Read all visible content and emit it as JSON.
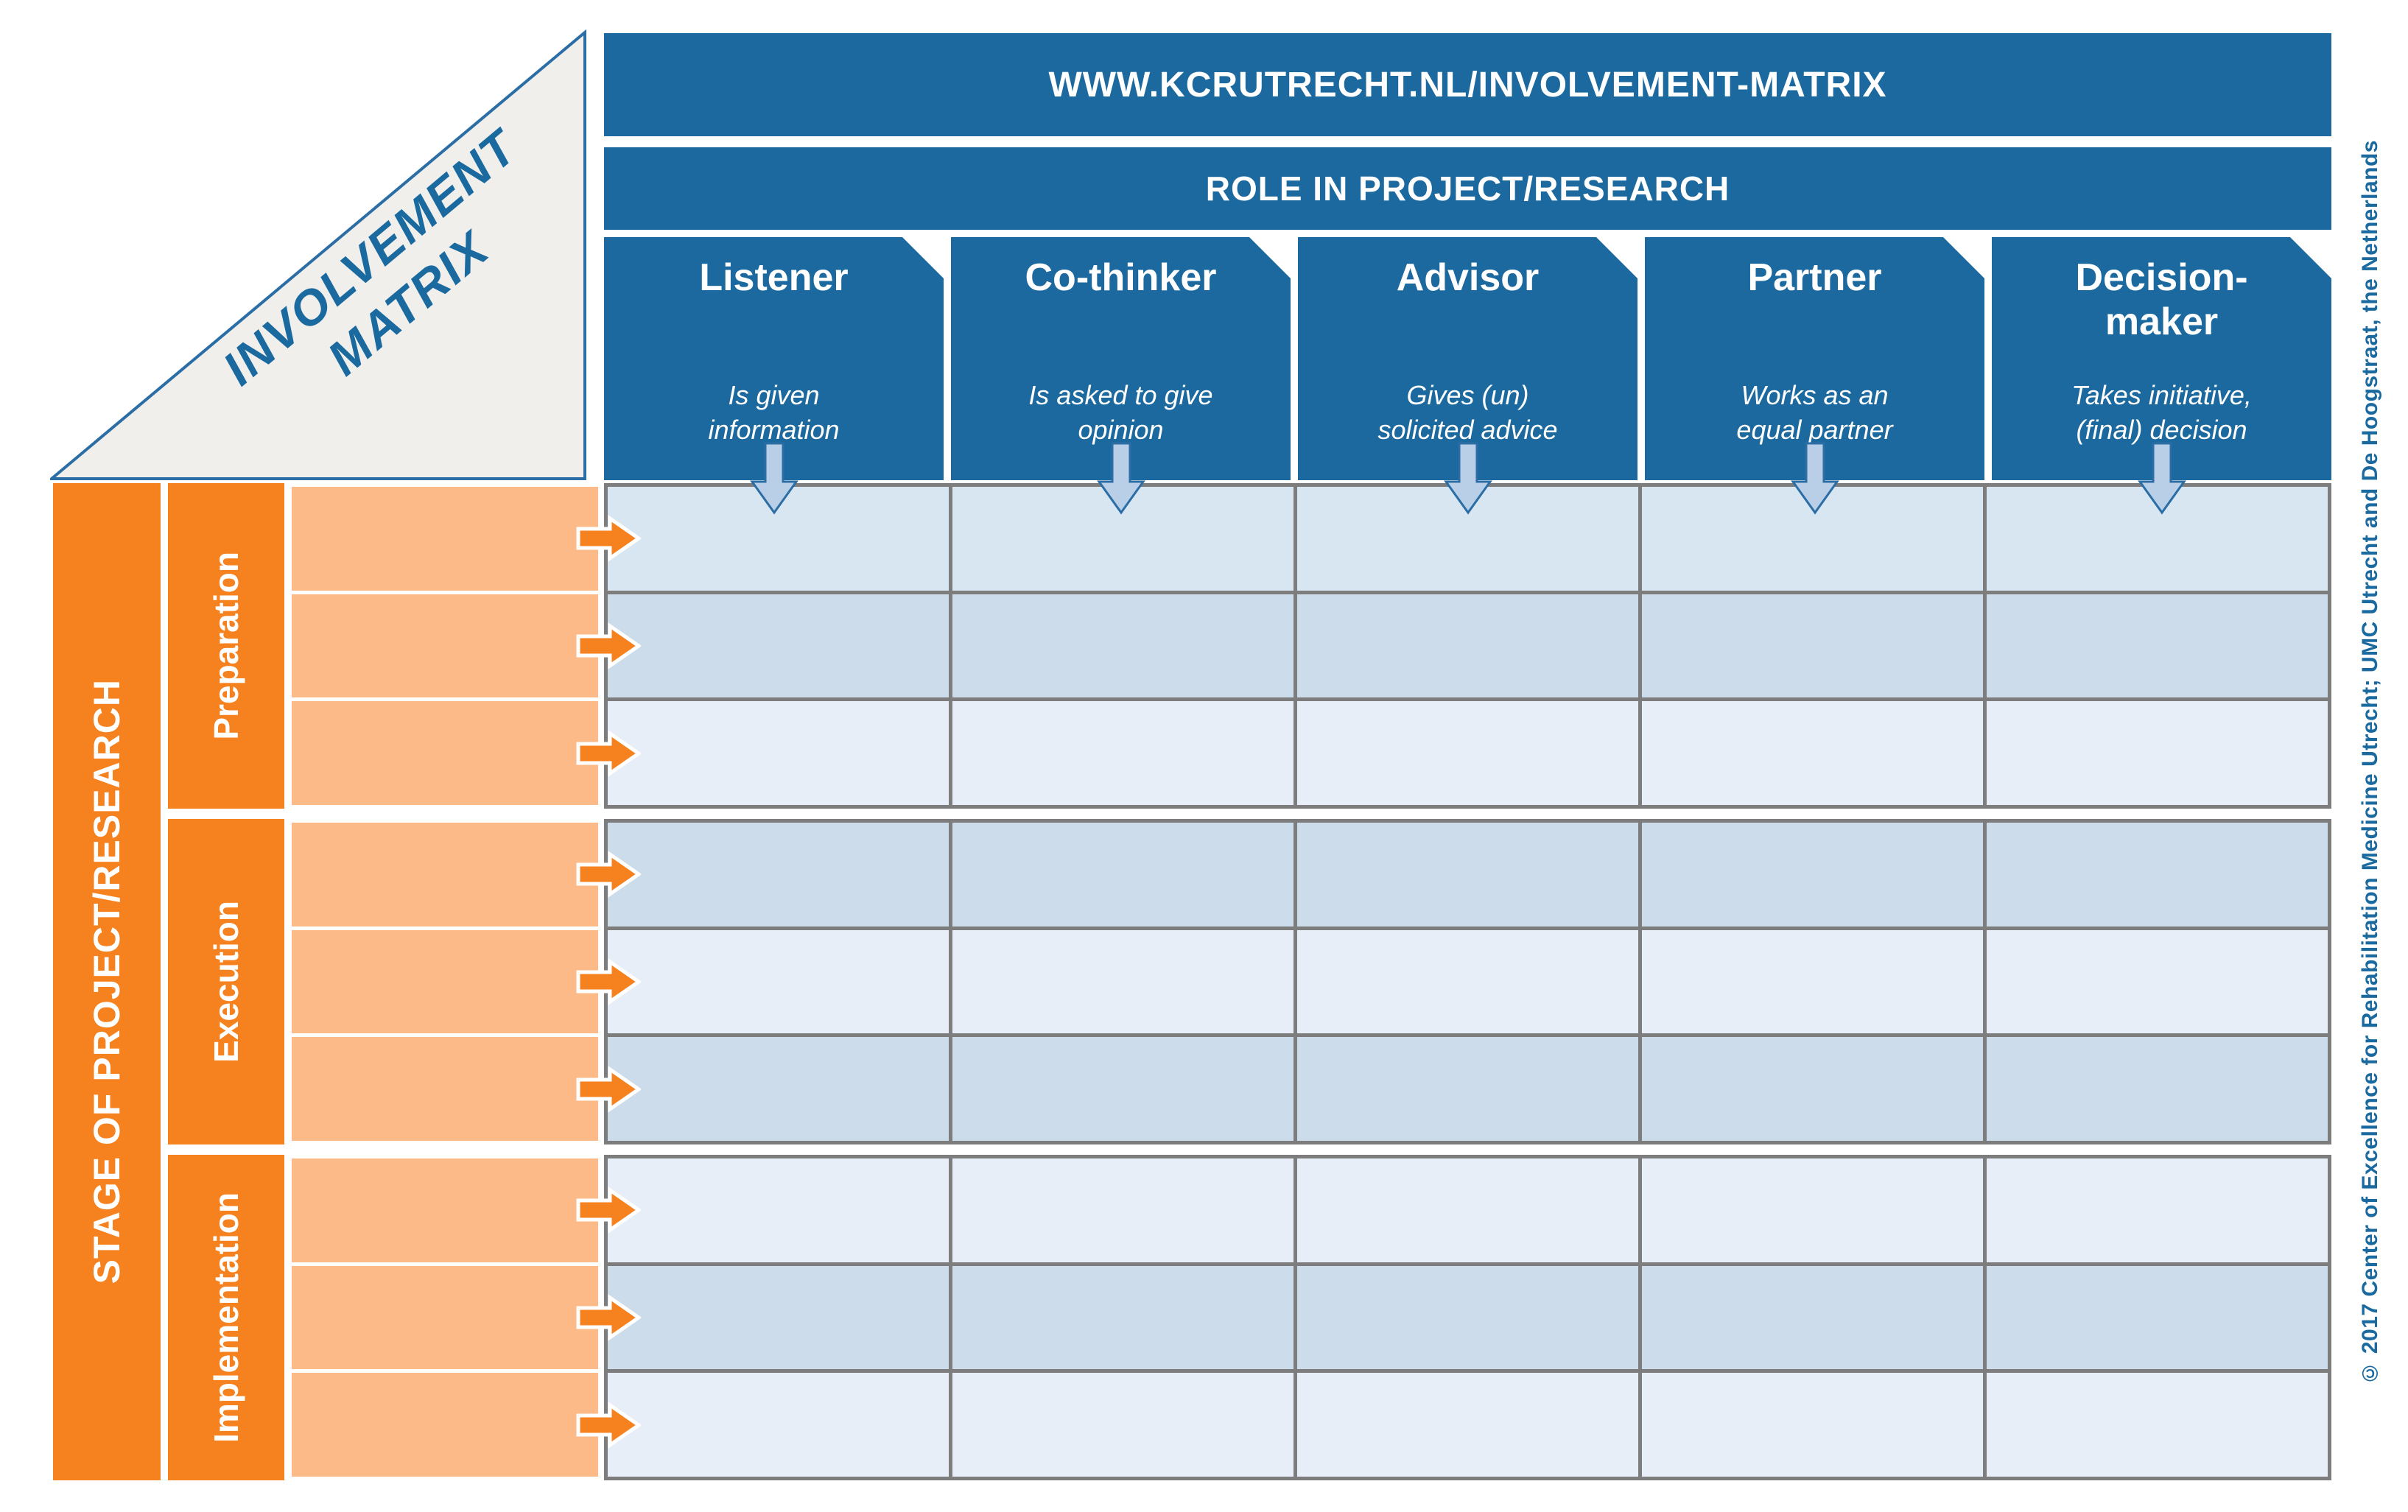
{
  "header": {
    "url": "WWW.KCRUTRECHT.NL/INVOLVEMENT-MATRIX",
    "role_axis_title": "ROLE IN PROJECT/RESEARCH"
  },
  "corner": {
    "line1": "INVOLVEMENT",
    "line2": "MATRIX"
  },
  "left_axis": {
    "title": "STAGE OF PROJECT/RESEARCH"
  },
  "roles": [
    {
      "label": "Listener",
      "description": "Is given\ninformation"
    },
    {
      "label": "Co-thinker",
      "description": "Is asked to give\nopinion"
    },
    {
      "label": "Advisor",
      "description": "Gives (un)\nsolicited advice"
    },
    {
      "label": "Partner",
      "description": "Works as an\nequal partner"
    },
    {
      "label": "Decision-\nmaker",
      "description": "Takes initiative,\n(final) decision"
    }
  ],
  "stages": [
    {
      "label": "Preparation",
      "rows": 3
    },
    {
      "label": "Execution",
      "rows": 3
    },
    {
      "label": "Implementation",
      "rows": 3
    }
  ],
  "grid": {
    "rows": 9,
    "columns": 5,
    "cells_empty": true,
    "row_colors": [
      "#d8e6f2",
      "#ccdcea",
      "#e8eef7",
      "#ccdcea",
      "#e8eef7",
      "#ccdcea",
      "#e8eef7",
      "#ccdcea",
      "#e8eef7"
    ]
  },
  "footer": {
    "copyright": "© 2017 Center of Excellence for Rehabilitation Medicine Utrecht; UMC Utrecht and De Hoogstraat, the Netherlands"
  },
  "colors": {
    "dark_blue": "#1b699e",
    "text_blue": "#1a6aa0",
    "blue_stroke": "#2b6da5",
    "arrow_blue_fill": "#b9cfe8",
    "orange": "#f6821f",
    "light_orange": "#fbba87",
    "triangle_fill": "#f0efec",
    "gray": "#7d7d7d"
  }
}
